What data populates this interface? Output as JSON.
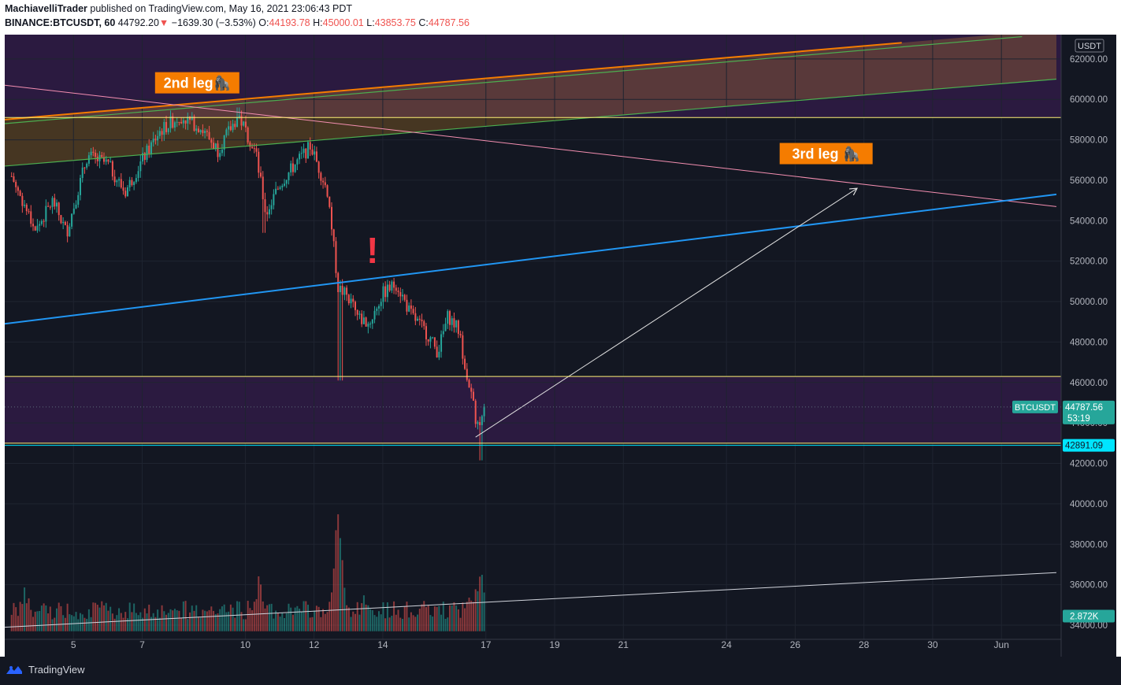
{
  "header": {
    "publisher": "MachiavelliTrader",
    "published_text": "published on TradingView.com, May 16, 2021 23:06:43 PDT",
    "symbol": "BINANCE:BTCUSDT, 60",
    "last": "44792.20",
    "change_arrow": "▼",
    "change": "−1639.30 (−3.53%)",
    "o_label": "O:",
    "o_value": "44193.78",
    "h_label": "H:",
    "h_value": "45000.01",
    "l_label": "L:",
    "l_value": "43853.75",
    "c_label": "C:",
    "c_value": "44787.56"
  },
  "footer": {
    "brand": "TradingView"
  },
  "colors": {
    "background": "#131722",
    "up": "#26a69a",
    "down": "#ef5350",
    "orange_line": "#f57c00",
    "green_line": "#4caf50",
    "blue_line": "#2196f3",
    "pink_line": "#f48fb1",
    "yellow_line": "#fff176",
    "cyan_line": "#00e5ff",
    "purple_zone": "#2b1a40",
    "label_bg": "#f57c00"
  },
  "chart_data": {
    "type": "candlestick",
    "symbol": "BTCUSDT",
    "currency": "USDT",
    "timeframe": "60",
    "ylim": [
      33300,
      63200
    ],
    "x_ticks": [
      {
        "label": "5",
        "day": 5
      },
      {
        "label": "7",
        "day": 7
      },
      {
        "label": "10",
        "day": 10
      },
      {
        "label": "12",
        "day": 12
      },
      {
        "label": "14",
        "day": 14
      },
      {
        "label": "17",
        "day": 17
      },
      {
        "label": "19",
        "day": 19
      },
      {
        "label": "21",
        "day": 21
      },
      {
        "label": "24",
        "day": 24
      },
      {
        "label": "26",
        "day": 26
      },
      {
        "label": "28",
        "day": 28
      },
      {
        "label": "30",
        "day": 30
      },
      {
        "label": "Jun",
        "day": 32
      }
    ],
    "y_ticks": [
      "62000.00",
      "60000.00",
      "58000.00",
      "56000.00",
      "54000.00",
      "52000.00",
      "50000.00",
      "48000.00",
      "46000.00",
      "44000.00",
      "42000.00",
      "40000.00",
      "38000.00",
      "36000.00",
      "34000.00"
    ],
    "price_path": [
      {
        "day": 3.2,
        "price": 56200
      },
      {
        "day": 3.9,
        "price": 53500
      },
      {
        "day": 4.4,
        "price": 55000
      },
      {
        "day": 4.8,
        "price": 53400
      },
      {
        "day": 5.4,
        "price": 57200
      },
      {
        "day": 6.0,
        "price": 56800
      },
      {
        "day": 6.5,
        "price": 55400
      },
      {
        "day": 7.0,
        "price": 57000
      },
      {
        "day": 7.5,
        "price": 58400
      },
      {
        "day": 8.1,
        "price": 59200
      },
      {
        "day": 8.7,
        "price": 58600
      },
      {
        "day": 9.2,
        "price": 57500
      },
      {
        "day": 9.8,
        "price": 59200
      },
      {
        "day": 10.3,
        "price": 57400
      },
      {
        "day": 10.6,
        "price": 54300
      },
      {
        "day": 11.0,
        "price": 55800
      },
      {
        "day": 11.5,
        "price": 56900
      },
      {
        "day": 11.9,
        "price": 57700
      },
      {
        "day": 12.4,
        "price": 55400
      },
      {
        "day": 12.7,
        "price": 50700
      },
      {
        "day": 13.0,
        "price": 50200
      },
      {
        "day": 13.3,
        "price": 49200
      },
      {
        "day": 13.6,
        "price": 48900
      },
      {
        "day": 14.0,
        "price": 50400
      },
      {
        "day": 14.4,
        "price": 50900
      },
      {
        "day": 14.8,
        "price": 49400
      },
      {
        "day": 15.3,
        "price": 48400
      },
      {
        "day": 15.6,
        "price": 47500
      },
      {
        "day": 15.9,
        "price": 49300
      },
      {
        "day": 16.2,
        "price": 48600
      },
      {
        "day": 16.5,
        "price": 46000
      },
      {
        "day": 16.7,
        "price": 44200
      },
      {
        "day": 16.85,
        "price": 43600
      },
      {
        "day": 16.95,
        "price": 44790
      }
    ],
    "wicks": [
      {
        "day": 10.55,
        "price": 53400
      },
      {
        "day": 12.75,
        "price": 46100
      },
      {
        "day": 16.85,
        "price": 42150
      },
      {
        "day": 9.8,
        "price": 59600
      }
    ],
    "volume_ylim": [
      0,
      8000
    ],
    "volume_peaks": [
      {
        "day": 3.6,
        "value": 2800
      },
      {
        "day": 8.5,
        "value": 2000
      },
      {
        "day": 10.4,
        "value": 3700
      },
      {
        "day": 12.7,
        "value": 7500
      },
      {
        "day": 13.5,
        "value": 2500
      },
      {
        "day": 16.5,
        "value": 2900
      },
      {
        "day": 16.85,
        "value": 4900
      }
    ],
    "lines": [
      {
        "name": "orange",
        "from": {
          "day": 3.0,
          "price": 59000
        },
        "to": {
          "day": 29.1,
          "price": 62800
        }
      },
      {
        "name": "green-upper",
        "from": {
          "day": 3.0,
          "price": 58800
        },
        "to": {
          "day": 32.6,
          "price": 63100
        }
      },
      {
        "name": "green-lower",
        "from": {
          "day": 3.0,
          "price": 56700
        },
        "to": {
          "day": 33.6,
          "price": 61000
        }
      },
      {
        "name": "pink",
        "from": {
          "day": 3.0,
          "price": 60700
        },
        "to": {
          "day": 33.6,
          "price": 54700
        }
      },
      {
        "name": "blue",
        "from": {
          "day": 3.0,
          "price": 48900
        },
        "to": {
          "day": 33.6,
          "price": 55300
        }
      },
      {
        "name": "white-arrow",
        "from": {
          "day": 16.7,
          "price": 43300
        },
        "to": {
          "day": 27.8,
          "price": 55600
        }
      },
      {
        "name": "white-trend",
        "from": {
          "day": 3.0,
          "price": 33900
        },
        "to": {
          "day": 33.6,
          "price": 36600
        }
      }
    ],
    "horizontal_lines": [
      {
        "name": "yellow-top",
        "price": 59100
      },
      {
        "name": "yellow-mid",
        "price": 46300
      },
      {
        "name": "yellow-low",
        "price": 43000
      },
      {
        "name": "cyan",
        "price": 42891.09
      }
    ],
    "zones": [
      {
        "name": "purple-top",
        "from": 59100,
        "to": 63200
      },
      {
        "name": "purple-mid",
        "from": 43000,
        "to": 46300
      }
    ],
    "annotations": [
      {
        "text": "2nd leg🦍",
        "day": 8.6,
        "price": 60800
      },
      {
        "text": "3rd leg 🦍",
        "day": 26.9,
        "price": 57300
      },
      {
        "text": "!",
        "day": 13.7,
        "price": 51900
      }
    ],
    "price_label": {
      "symbol": "BTCUSDT",
      "value": "44787.56",
      "countdown": "53:19",
      "price": 44787.56
    },
    "level_label": {
      "value": "42891.09",
      "price": 42891.09
    },
    "volume_label": {
      "value": "2.872K",
      "price": 34450
    }
  }
}
